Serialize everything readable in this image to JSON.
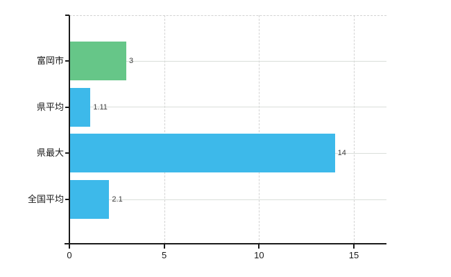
{
  "chart_data": {
    "type": "bar",
    "orientation": "horizontal",
    "title": "",
    "categories": [
      "富岡市",
      "県平均",
      "県最大",
      "全国平均"
    ],
    "values": [
      3,
      1.11,
      14,
      2.1
    ],
    "value_labels": [
      "3",
      "1.11",
      "14",
      "2.1"
    ],
    "bar_colors": [
      "#66c688",
      "#3db9ea",
      "#3db9ea",
      "#3db9ea"
    ],
    "xticks": [
      0,
      5,
      10,
      15
    ],
    "xtick_labels": [
      "0",
      "5",
      "10",
      "15"
    ],
    "xlim": [
      0,
      16.7
    ],
    "grid": true,
    "legend": false,
    "colors": {
      "bar_green": "#66c688",
      "bar_blue": "#3db9ea",
      "axis": "#1a1a1a",
      "h_gridline": "#d9ded9",
      "v_gridline": "#d2d2d2",
      "value_label": "#3a3a3a",
      "background": "#ffffff"
    }
  }
}
